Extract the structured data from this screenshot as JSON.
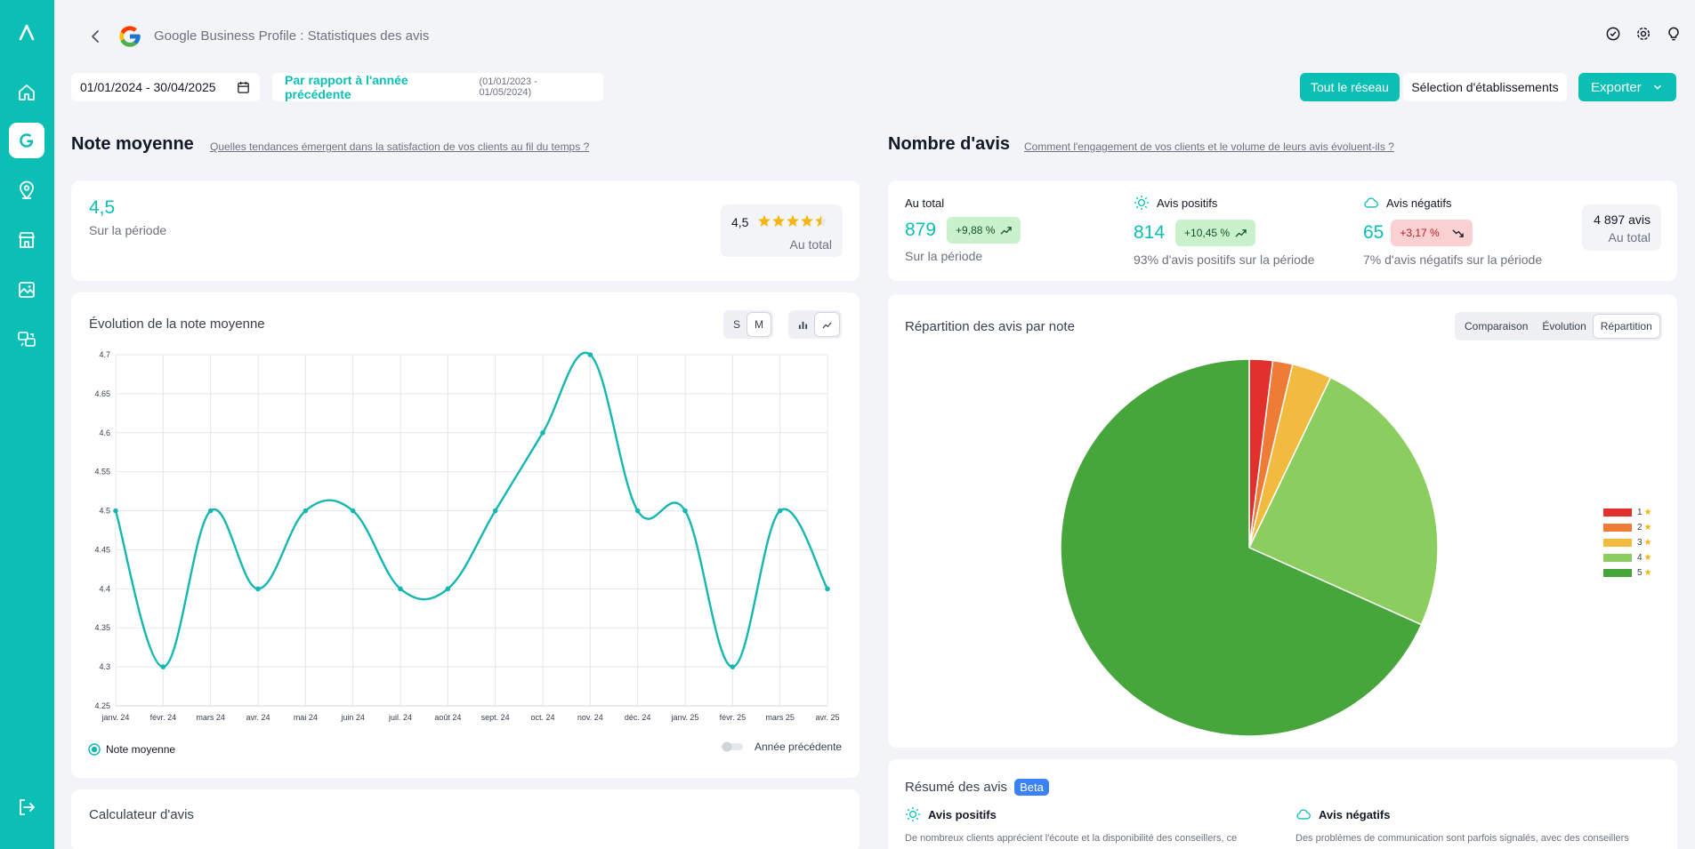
{
  "header": {
    "title": "Google Business Profile : Statistiques des avis"
  },
  "filters": {
    "date_range": "01/01/2024 - 30/04/2025",
    "compare_label": "Par rapport à l'année précédente",
    "compare_range": "(01/01/2023 - 01/05/2024)",
    "network_button": "Tout le réseau",
    "selection_button": "Sélection d'établissements",
    "export_button": "Exporter"
  },
  "rating": {
    "title": "Note moyenne",
    "link": "Quelles tendances émergent dans la satisfaction de vos clients au fil du temps ?",
    "value": "4,5",
    "period_label": "Sur la période",
    "total_value": "4,5",
    "total_stars": 4.5,
    "total_label": "Au total"
  },
  "evolution": {
    "title": "Évolution de la note moyenne",
    "granularity": [
      "S",
      "M"
    ],
    "legend_label": "Note moyenne",
    "previous_year_label": "Année précédente"
  },
  "chart_data": [
    {
      "type": "line",
      "title": "Évolution de la note moyenne",
      "categories": [
        "janv. 24",
        "févr. 24",
        "mars 24",
        "avr. 24",
        "mai 24",
        "juin 24",
        "juil. 24",
        "août 24",
        "sept. 24",
        "oct. 24",
        "nov. 24",
        "déc. 24",
        "janv. 25",
        "févr. 25",
        "mars 25",
        "avr. 25"
      ],
      "series": [
        {
          "name": "Note moyenne",
          "values": [
            4.5,
            4.3,
            4.5,
            4.4,
            4.5,
            4.5,
            4.4,
            4.4,
            4.5,
            4.6,
            4.7,
            4.5,
            4.5,
            4.3,
            4.5,
            4.4
          ],
          "color": "#14b8b0"
        }
      ],
      "yticks": [
        "4.7",
        "4.65",
        "4.6",
        "4.55",
        "4.5",
        "4.45",
        "4.4",
        "4.35",
        "4.3",
        "4.25"
      ],
      "ylim": [
        4.25,
        4.7
      ],
      "grid": true
    },
    {
      "type": "pie",
      "title": "Répartition des avis par note",
      "labels": [
        "1",
        "2",
        "3",
        "4",
        "5"
      ],
      "values": [
        2.0,
        1.7,
        3.4,
        24.6,
        68.3
      ],
      "colors": [
        "#e2302c",
        "#ee7b36",
        "#f0bb3e",
        "#8ccd60",
        "#46a63b"
      ],
      "legend": "right"
    }
  ],
  "reviews": {
    "title": "Nombre d'avis",
    "link": "Comment l'engagement de vos clients et le volume de leurs avis évoluent-ils ?",
    "total_label": "Au total",
    "total_value": "879",
    "total_badge": "+9,88 %",
    "total_sub": "Sur la période",
    "positive_label": "Avis positifs",
    "positive_value": "814",
    "positive_badge": "+10,45 %",
    "positive_sub": "93% d'avis positifs sur la période",
    "negative_label": "Avis négatifs",
    "negative_value": "65",
    "negative_badge": "+3,17 %",
    "negative_sub": "7% d'avis négatifs sur la période",
    "all_count": "4 897 avis",
    "all_label": "Au total"
  },
  "distribution": {
    "title": "Répartition des avis par note",
    "tabs": [
      "Comparaison",
      "Évolution",
      "Répartition"
    ]
  },
  "summary": {
    "title": "Résumé des avis",
    "beta": "Beta",
    "positive_title": "Avis positifs",
    "positive_text": "De nombreux clients apprécient l'écoute et la disponibilité des conseillers, ce",
    "negative_title": "Avis négatifs",
    "negative_text": "Des problèmes de communication sont parfois signalés, avec des conseillers"
  },
  "calculator": {
    "title": "Calculateur d'avis"
  }
}
